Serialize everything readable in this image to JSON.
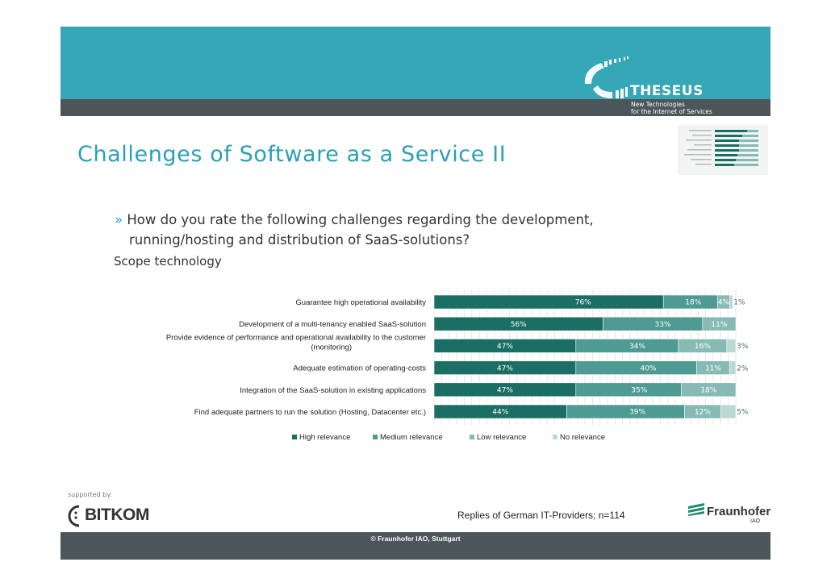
{
  "header": {
    "brand": "THESEUS",
    "brand_sub_1": "New Technologies",
    "brand_sub_2": "for the Internet of Services"
  },
  "title": "Challenges of Software as a Service II",
  "question_line_1": "How do you rate the following challenges regarding the development,",
  "question_line_2": "running/hosting and distribution of SaaS-solutions?",
  "question_marker": "»",
  "scope": "Scope technology",
  "chart_data": {
    "type": "bar",
    "orientation": "horizontal-stacked-100",
    "categories": [
      "Guarantee high operational availability",
      "Development of a multi-tenancy enabled SaaS-solution",
      "Provide evidence of performance and operational availability to the customer (monitoring)",
      "Adequate estimation of operating-costs",
      "Integration of the SaaS-solution in existing applications",
      "Find adequate partners to run the solution (Hosting, Datacenter etc.)"
    ],
    "category_lines": [
      [
        "Guarantee high operational availability"
      ],
      [
        "Development of a multi-tenancy enabled SaaS-solution"
      ],
      [
        "Provide evidence of performance and operational availability to the customer",
        "(monitoring)"
      ],
      [
        "Adequate estimation of operating-costs"
      ],
      [
        "Integration of the SaaS-solution in existing applications"
      ],
      [
        "Find adequate partners to run the solution (Hosting, Datacenter etc.)"
      ]
    ],
    "series": [
      {
        "name": "High relevance",
        "color": "#1b6e64",
        "values": [
          76,
          56,
          47,
          47,
          47,
          44
        ]
      },
      {
        "name": "Medium relevance",
        "color": "#4f9a93",
        "values": [
          18,
          33,
          34,
          40,
          35,
          39
        ]
      },
      {
        "name": "Low relevance",
        "color": "#87bab4",
        "values": [
          4,
          11,
          16,
          11,
          18,
          12
        ]
      },
      {
        "name": "No relevance",
        "color": "#bcd8d4",
        "values": [
          1,
          null,
          3,
          2,
          null,
          5
        ]
      }
    ],
    "xlim": [
      0,
      100
    ],
    "unit": "%",
    "legend_position": "bottom",
    "grid": true
  },
  "footer": {
    "supported_by": "supported by:",
    "sponsor": "BITKOM",
    "source_note": "Replies of German IT-Providers; n=114",
    "institution": "Fraunhofer",
    "institution_sub": "IAO",
    "copyright": "© Fraunhofer IAO, Stuttgart"
  }
}
